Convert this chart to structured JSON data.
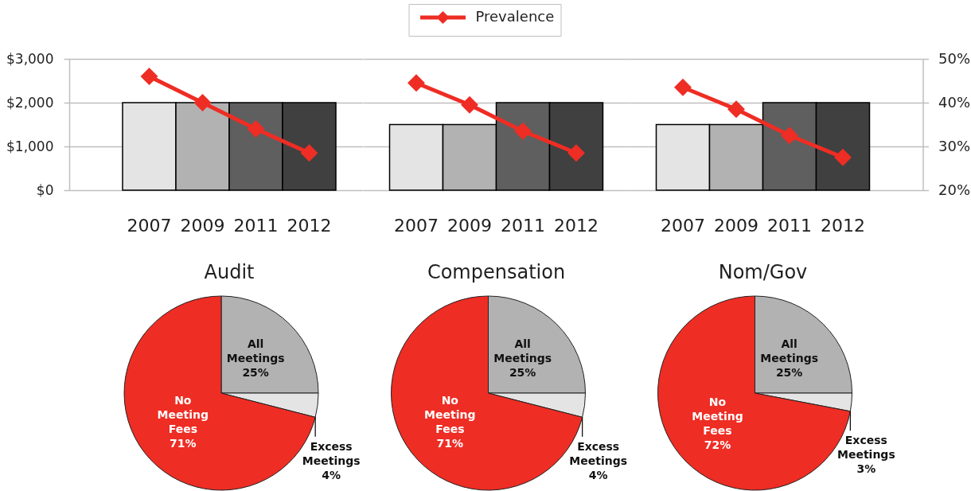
{
  "chart_data": [
    {
      "type": "bar",
      "categories": [
        "2007",
        "2009",
        "2011",
        "2012"
      ],
      "series": [
        {
          "type": "bar",
          "colors": [
            "#e4e4e4",
            "#b2b2b2",
            "#5f5f5f",
            "#404040"
          ],
          "values": [
            2000,
            2000,
            2000,
            2000
          ]
        },
        {
          "type": "line",
          "color": "#ee2d24",
          "axis": "y2",
          "values": [
            46,
            40,
            34,
            28.5
          ]
        }
      ],
      "ylim": [
        0,
        3000
      ],
      "yticks": [
        {
          "value": 0,
          "label": "$0"
        },
        {
          "value": 1000,
          "label": "$1,000"
        },
        {
          "value": 2000,
          "label": "$2,000"
        },
        {
          "value": 3000,
          "label": "$3,000"
        }
      ],
      "y2lim": [
        20,
        50
      ],
      "grid": "y",
      "marker": "diamond",
      "tick_labels": [
        "x",
        "y"
      ]
    },
    {
      "type": "bar",
      "categories": [
        "2007",
        "2009",
        "2011",
        "2012"
      ],
      "series": [
        {
          "type": "bar",
          "colors": [
            "#e4e4e4",
            "#b2b2b2",
            "#5f5f5f",
            "#404040"
          ],
          "values": [
            1500,
            1500,
            2000,
            2000
          ]
        },
        {
          "type": "line",
          "name": "Prevalence",
          "color": "#ee2d24",
          "axis": "y2",
          "values": [
            44.5,
            39.5,
            33.5,
            28.5
          ]
        }
      ],
      "ylim": [
        0,
        3000
      ],
      "y2lim": [
        20,
        50
      ],
      "grid": "y",
      "marker": "diamond",
      "legend": "top",
      "tick_labels": [
        "x"
      ]
    },
    {
      "type": "bar",
      "categories": [
        "2007",
        "2009",
        "2011",
        "2012"
      ],
      "series": [
        {
          "type": "bar",
          "colors": [
            "#e4e4e4",
            "#b2b2b2",
            "#5f5f5f",
            "#404040"
          ],
          "values": [
            1500,
            1500,
            2000,
            2000
          ]
        },
        {
          "type": "line",
          "color": "#ee2d24",
          "axis": "y2",
          "values": [
            43.5,
            38.5,
            32.5,
            27.5
          ]
        }
      ],
      "ylim": [
        0,
        3000
      ],
      "y2lim": [
        20,
        50
      ],
      "y2ticks": [
        {
          "value": 20,
          "label": "20%"
        },
        {
          "value": 30,
          "label": "30%"
        },
        {
          "value": 40,
          "label": "40%"
        },
        {
          "value": 50,
          "label": "50%"
        }
      ],
      "grid": "y",
      "marker": "diamond",
      "tick_labels": [
        "x",
        "y2"
      ]
    },
    {
      "type": "pie",
      "title": "Audit",
      "categories": [
        "All Meetings",
        "Excess Meetings",
        "No Meeting Fees"
      ],
      "values": [
        25,
        4,
        71
      ],
      "colors": [
        "#b2b2b2",
        "#e4e4e4",
        "#ee2d24"
      ],
      "value_labels": [
        "25%",
        "4%",
        "71%"
      ]
    },
    {
      "type": "pie",
      "title": "Compensation",
      "categories": [
        "All Meetings",
        "Excess Meetings",
        "No Meeting Fees"
      ],
      "values": [
        25,
        4,
        71
      ],
      "colors": [
        "#b2b2b2",
        "#e4e4e4",
        "#ee2d24"
      ],
      "value_labels": [
        "25%",
        "4%",
        "71%"
      ]
    },
    {
      "type": "pie",
      "title": "Nom/Gov",
      "categories": [
        "All Meetings",
        "Excess Meetings",
        "No Meeting Fees"
      ],
      "values": [
        25,
        3,
        72
      ],
      "colors": [
        "#b2b2b2",
        "#e4e4e4",
        "#ee2d24"
      ],
      "value_labels": [
        "25%",
        "3%",
        "72%"
      ]
    }
  ]
}
